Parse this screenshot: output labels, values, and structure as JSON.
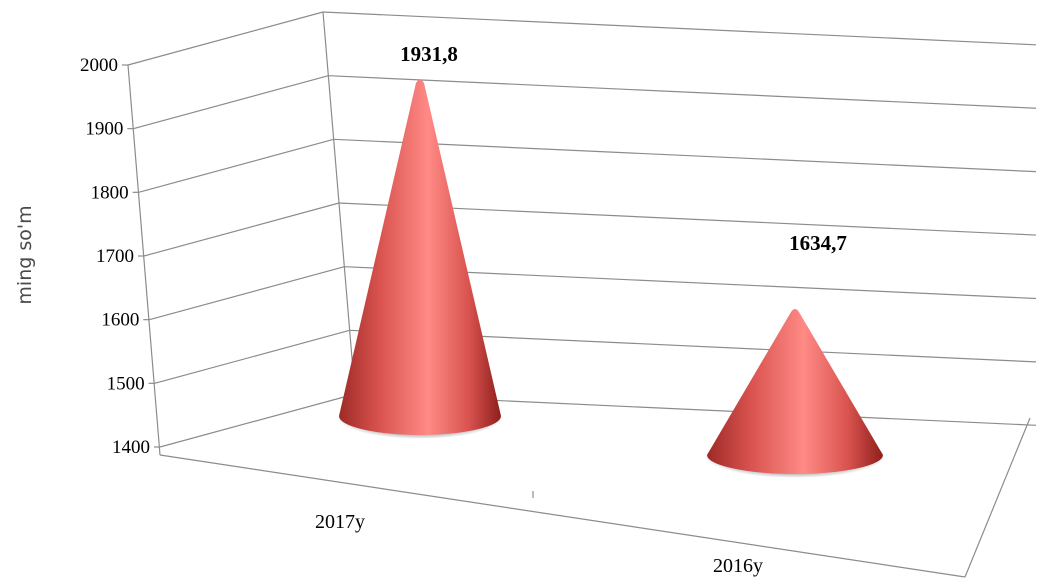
{
  "chart_data": {
    "type": "bar",
    "style": "3d-cone",
    "categories": [
      "2017y",
      "2016y"
    ],
    "values": [
      1931.8,
      1634.7
    ],
    "data_labels": [
      "1931,8",
      "1634,7"
    ],
    "title": "",
    "xlabel": "",
    "ylabel": "ming so'm",
    "ylim": [
      1400,
      2000
    ],
    "yticks": [
      2000,
      1900,
      1800,
      1700,
      1600,
      1500,
      1400
    ],
    "grid": true,
    "legend": "none",
    "colors": {
      "bar": "#d9534f",
      "bar_highlight": "#ff8a86",
      "bar_shadow": "#8e1f1c",
      "grid": "#8c8c8c"
    }
  }
}
